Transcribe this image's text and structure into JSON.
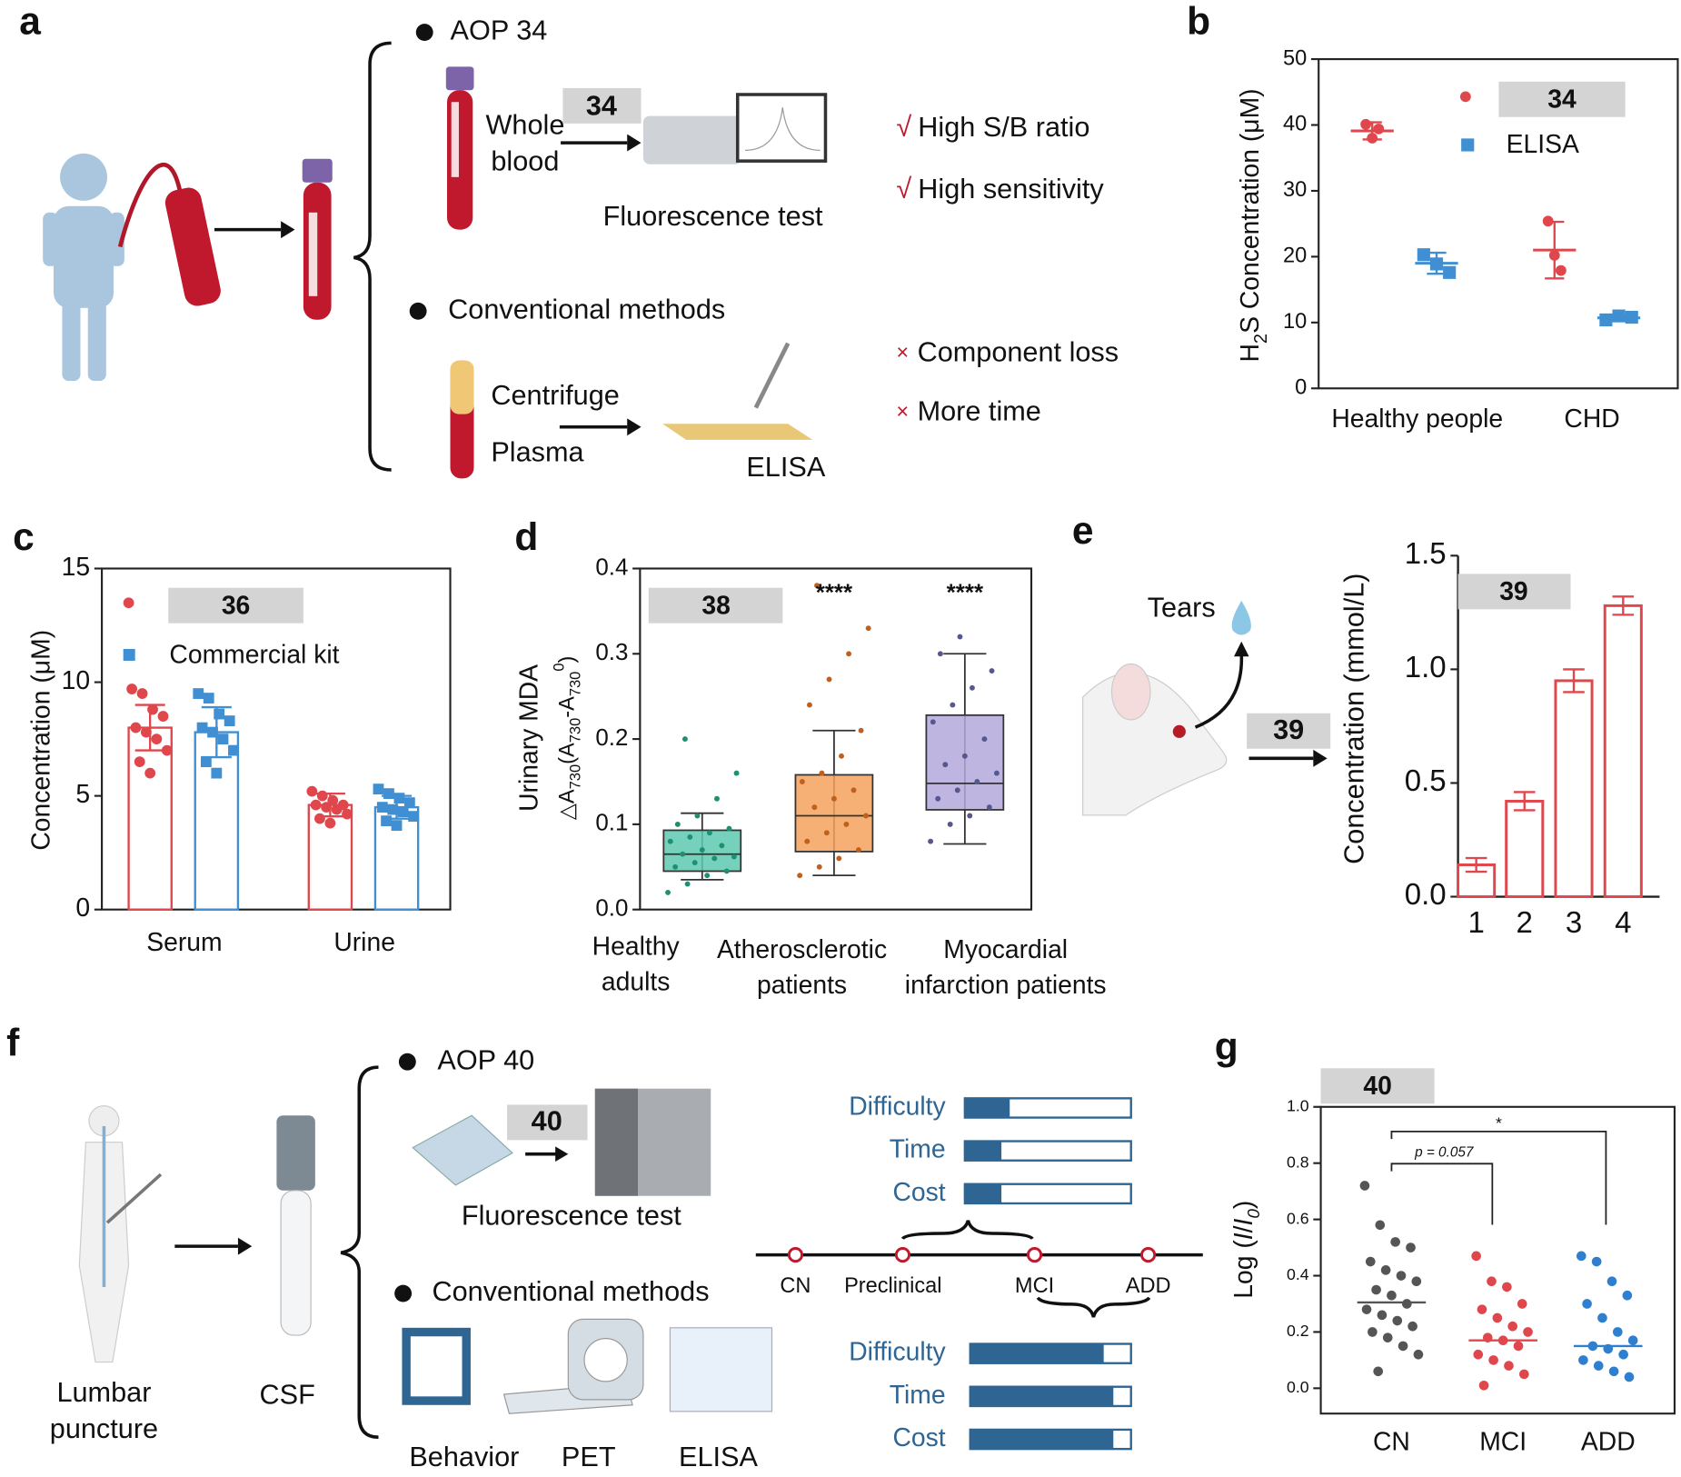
{
  "panel_labels": [
    "a",
    "b",
    "c",
    "d",
    "e",
    "f",
    "g"
  ],
  "panel_a": {
    "aop_heading": "AOP 34",
    "probe": "34",
    "sample": [
      "Whole",
      "blood"
    ],
    "test": "Fluorescence test",
    "pros_mark": "√",
    "pros": [
      "High S/B ratio",
      "High sensitivity"
    ],
    "conventional_heading": "Conventional methods",
    "steps": [
      "Centrifuge",
      "Plasma"
    ],
    "assay": "ELISA",
    "cons_mark": "×",
    "cons": [
      "Component loss",
      "More time"
    ]
  },
  "panel_e_scheme": {
    "tears": "Tears",
    "probe": "39"
  },
  "panel_f": {
    "aop_heading": "AOP 40",
    "probe": "40",
    "test": "Fluorescence test",
    "conventional_heading": "Conventional methods",
    "methods": [
      "Behavior",
      "PET",
      "ELISA"
    ],
    "procedure": [
      "Lumbar",
      "puncture"
    ],
    "sample": "CSF",
    "stages": [
      "CN",
      "Preclinical",
      "MCI",
      "ADD"
    ],
    "probe_metrics": {
      "names": [
        "Difficulty",
        "Time",
        "Cost"
      ],
      "values": [
        0.27,
        0.22,
        0.22
      ]
    },
    "conventional_metrics": {
      "names": [
        "Difficulty",
        "Time",
        "Cost"
      ],
      "values": [
        0.83,
        0.89,
        0.89
      ]
    },
    "bar_color": "#2f6593"
  },
  "chart_data": [
    {
      "type": "dot_error",
      "categories": [
        "Healthy people",
        "CHD"
      ],
      "y_label": [
        "H",
        "2",
        "S Concentration (μM)"
      ],
      "ylim": [
        0,
        50
      ],
      "yticks": [
        0,
        10,
        20,
        30,
        40,
        50
      ],
      "series": [
        {
          "name": "34",
          "color": "#e0474c",
          "values": [
            39.1,
            21.0
          ],
          "errors": [
            1.3,
            4.3
          ],
          "points": [
            [
              40.1,
              38.0,
              39.4
            ],
            [
              25.4,
              20.2,
              17.9
            ]
          ]
        },
        {
          "name": "ELISA",
          "color": "#3f8fd2",
          "values": [
            19.0,
            10.7
          ],
          "errors": [
            1.6,
            0.4
          ],
          "points": [
            [
              20.3,
              18.9,
              17.6
            ],
            [
              10.4,
              11.0,
              10.8
            ]
          ]
        }
      ]
    },
    {
      "type": "bar_dots",
      "categories": [
        "Serum",
        "Urine"
      ],
      "y_label": "Concentration (μM)",
      "ylim": [
        0,
        15
      ],
      "yticks": [
        0,
        5,
        10,
        15
      ],
      "series": [
        {
          "name": "36",
          "color": "#e0474c",
          "values": [
            8.0,
            4.6
          ],
          "errors": [
            1.0,
            0.5
          ],
          "points": [
            [
              9.7,
              9.5,
              8.8,
              8.5,
              8.0,
              7.8,
              7.5,
              7.0,
              6.5,
              6.0
            ],
            [
              5.2,
              5.0,
              4.8,
              4.6,
              4.6,
              4.5,
              4.4,
              4.2,
              4.0,
              3.8
            ]
          ]
        },
        {
          "name": "Commercial kit",
          "color": "#3f8fd2",
          "values": [
            7.8,
            4.5
          ],
          "errors": [
            1.1,
            0.5
          ],
          "points": [
            [
              9.5,
              9.3,
              8.6,
              8.3,
              8.0,
              7.8,
              7.5,
              7.0,
              6.5,
              6.0
            ],
            [
              5.3,
              5.1,
              4.9,
              4.7,
              4.5,
              4.4,
              4.3,
              4.1,
              3.9,
              3.7
            ]
          ]
        }
      ]
    },
    {
      "type": "box",
      "categories": [
        [
          "Healthy",
          "adults"
        ],
        [
          "Atherosclerotic",
          "patients"
        ],
        [
          "Myocardial",
          "infarction patients"
        ]
      ],
      "colors": [
        "#1f8f72",
        "#c0601c",
        "#565690"
      ],
      "box_colors": [
        "#5ec9b0",
        "#f5a25d",
        "#b3a9dc"
      ],
      "y_label": "Urinary MDA",
      "y_label_2": [
        "△A",
        "730",
        "(A",
        "730",
        "-A",
        "730",
        "0",
        ")"
      ],
      "ylim": [
        0,
        0.4
      ],
      "yticks": [
        {
          "value": 0,
          "label": "0.0"
        },
        0.1,
        0.2,
        0.3,
        0.4
      ],
      "legend": "38",
      "significance": [
        null,
        "****",
        "****"
      ],
      "whisker_low": [
        0.035,
        0.04,
        0.077
      ],
      "q1": [
        0.045,
        0.068,
        0.117
      ],
      "median": [
        0.065,
        0.11,
        0.148
      ],
      "q3": [
        0.093,
        0.158,
        0.228
      ],
      "whisker_high": [
        0.113,
        0.21,
        0.3
      ],
      "points": [
        [
          0.02,
          0.03,
          0.04,
          0.045,
          0.05,
          0.055,
          0.06,
          0.062,
          0.065,
          0.07,
          0.075,
          0.08,
          0.085,
          0.09,
          0.095,
          0.1,
          0.11,
          0.13,
          0.16,
          0.2
        ],
        [
          0.04,
          0.05,
          0.06,
          0.07,
          0.08,
          0.09,
          0.1,
          0.11,
          0.12,
          0.13,
          0.14,
          0.15,
          0.16,
          0.18,
          0.21,
          0.24,
          0.27,
          0.3,
          0.33,
          0.38
        ],
        [
          0.08,
          0.1,
          0.11,
          0.12,
          0.13,
          0.14,
          0.15,
          0.16,
          0.17,
          0.18,
          0.2,
          0.22,
          0.24,
          0.26,
          0.28,
          0.3,
          0.32
        ]
      ]
    },
    {
      "type": "bar_error",
      "categories": [
        "1",
        "2",
        "3",
        "4"
      ],
      "y_label": "Concentration (mmol/L)",
      "ylim": [
        0,
        1.5
      ],
      "yticks": [
        {
          "value": 0,
          "label": "0.0"
        },
        0.5,
        {
          "value": 1,
          "label": "1.0"
        },
        1.5
      ],
      "series": [
        {
          "name": "39",
          "color": "#e0474c",
          "values": [
            0.14,
            0.42,
            0.95,
            1.28
          ],
          "errors": [
            0.03,
            0.04,
            0.05,
            0.04
          ]
        }
      ]
    },
    {
      "type": "dot_median",
      "categories": [
        "CN",
        "MCI",
        "ADD"
      ],
      "colors": [
        "#555555",
        "#e0474c",
        "#2f7fd0"
      ],
      "y_label": [
        "Log (",
        "I",
        "/",
        "I",
        "0",
        ")"
      ],
      "legend": "40",
      "ylim": [
        -0.09,
        1.0
      ],
      "yticks": [
        {
          "value": 0,
          "label": "0.0"
        },
        0.2,
        0.4,
        0.6,
        0.8,
        {
          "value": 1,
          "label": "1.0"
        }
      ],
      "annotations": [
        "p = 0.057",
        "*"
      ],
      "values": [
        0.305,
        0.17,
        0.15
      ],
      "points": [
        [
          0.72,
          0.58,
          0.52,
          0.5,
          0.45,
          0.42,
          0.4,
          0.38,
          0.35,
          0.33,
          0.3,
          0.28,
          0.26,
          0.24,
          0.22,
          0.2,
          0.18,
          0.15,
          0.12,
          0.06
        ],
        [
          0.47,
          0.38,
          0.36,
          0.3,
          0.28,
          0.25,
          0.22,
          0.2,
          0.18,
          0.17,
          0.15,
          0.12,
          0.1,
          0.08,
          0.05,
          0.01
        ],
        [
          0.47,
          0.45,
          0.38,
          0.33,
          0.3,
          0.25,
          0.2,
          0.17,
          0.15,
          0.14,
          0.12,
          0.1,
          0.08,
          0.06,
          0.04
        ]
      ]
    }
  ]
}
